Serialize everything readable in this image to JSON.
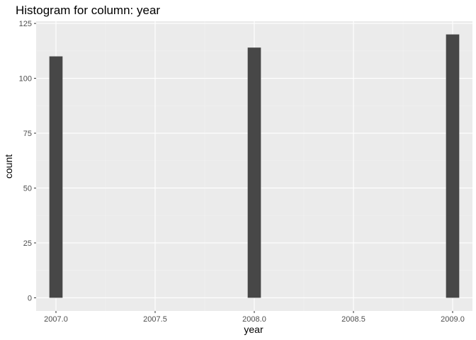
{
  "chart_data": {
    "type": "bar",
    "title": "Histogram for column: year",
    "xlabel": "year",
    "ylabel": "count",
    "x": [
      2007.0,
      2008.0,
      2009.0
    ],
    "values": [
      110,
      114,
      120
    ],
    "bin_width": 0.0667,
    "xlim": [
      2006.9,
      2009.1
    ],
    "ylim": [
      -6,
      126
    ],
    "x_ticks": [
      2007.0,
      2007.5,
      2008.0,
      2008.5,
      2009.0
    ],
    "x_tick_labels": [
      "2007.0",
      "2007.5",
      "2008.0",
      "2008.5",
      "2009.0"
    ],
    "y_ticks": [
      0,
      25,
      50,
      75,
      100,
      125
    ],
    "y_tick_labels": [
      "0",
      "25",
      "50",
      "75",
      "100",
      "125"
    ],
    "grid": true,
    "colors": {
      "panel_background": "#ebebeb",
      "bar_fill": "#474747",
      "grid_major": "#ffffff",
      "grid_minor": "#f2f2f2"
    }
  }
}
